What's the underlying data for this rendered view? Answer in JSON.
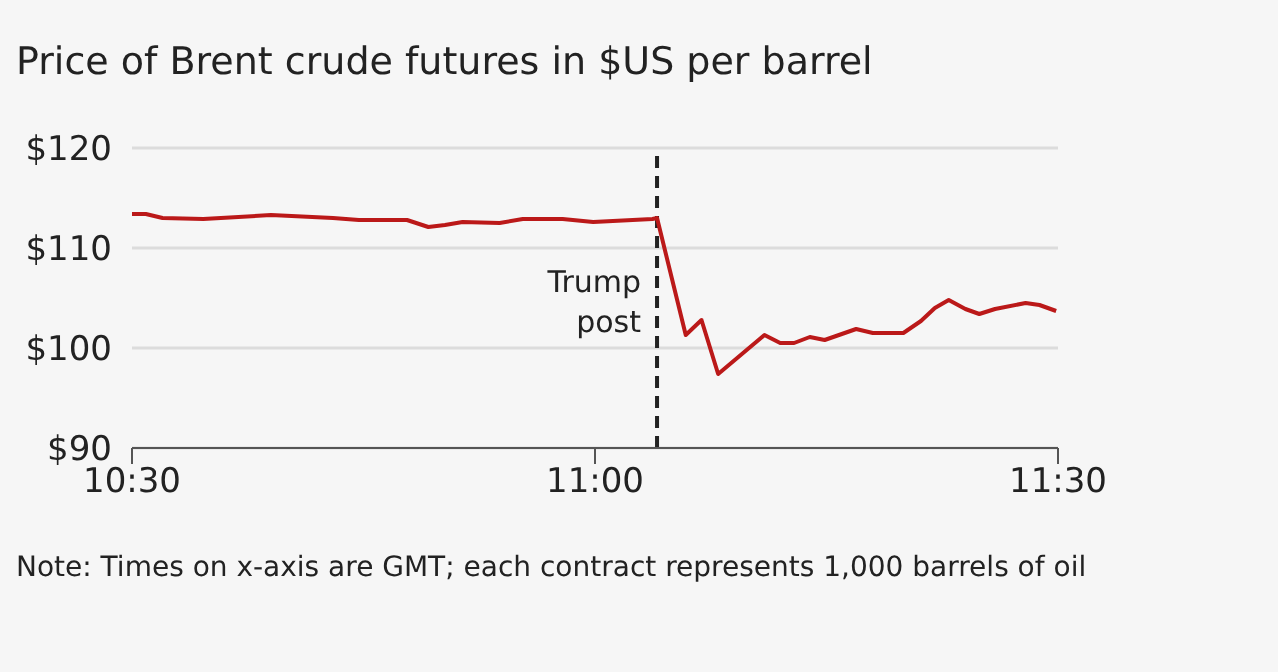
{
  "chart_data": {
    "type": "line",
    "title": "Price of Brent crude futures in $US per barrel",
    "x": [
      10.5,
      10.515,
      10.533,
      10.577,
      10.65,
      10.717,
      10.745,
      10.797,
      10.82,
      10.838,
      10.857,
      10.897,
      10.922,
      10.965,
      10.998,
      11.062,
      11.067,
      11.098,
      11.115,
      11.133,
      11.183,
      11.2,
      11.215,
      11.232,
      11.248,
      11.282,
      11.3,
      11.333,
      11.352,
      11.367,
      11.382,
      11.4,
      11.415,
      11.432,
      11.465,
      11.48,
      11.498
    ],
    "series": [
      {
        "color": "#bb1919",
        "values": [
          113.4,
          113.4,
          113.0,
          112.9,
          113.3,
          113.0,
          112.8,
          112.8,
          112.1,
          112.3,
          112.6,
          112.5,
          112.9,
          112.9,
          112.6,
          112.9,
          113.0,
          101.3,
          102.8,
          97.4,
          101.3,
          100.5,
          100.5,
          101.1,
          100.8,
          101.9,
          101.5,
          101.5,
          102.7,
          104.0,
          104.8,
          103.9,
          103.4,
          103.9,
          104.5,
          104.3,
          103.7
        ]
      }
    ],
    "xlim": [
      10.5,
      11.5
    ],
    "xticks": [
      {
        "value": 10.5,
        "label": "10:30"
      },
      {
        "value": 11,
        "label": "11:00"
      },
      {
        "value": 11.5,
        "label": "11:30"
      }
    ],
    "ylim": [
      90,
      120
    ],
    "yticks": [
      {
        "value": 90,
        "label": "$90"
      },
      {
        "value": 100,
        "label": "$100"
      },
      {
        "value": 110,
        "label": "$110"
      },
      {
        "value": 120,
        "label": "$120"
      }
    ],
    "grid": "y",
    "ref_lines": [
      {
        "axis": "x",
        "value": 11.067,
        "label": "Trump post",
        "color": "#222222",
        "line_style": "dashed"
      }
    ],
    "annotations": [
      "Note: Times on x-axis are GMT; each contract represents 1,000 barrels of oil"
    ]
  }
}
